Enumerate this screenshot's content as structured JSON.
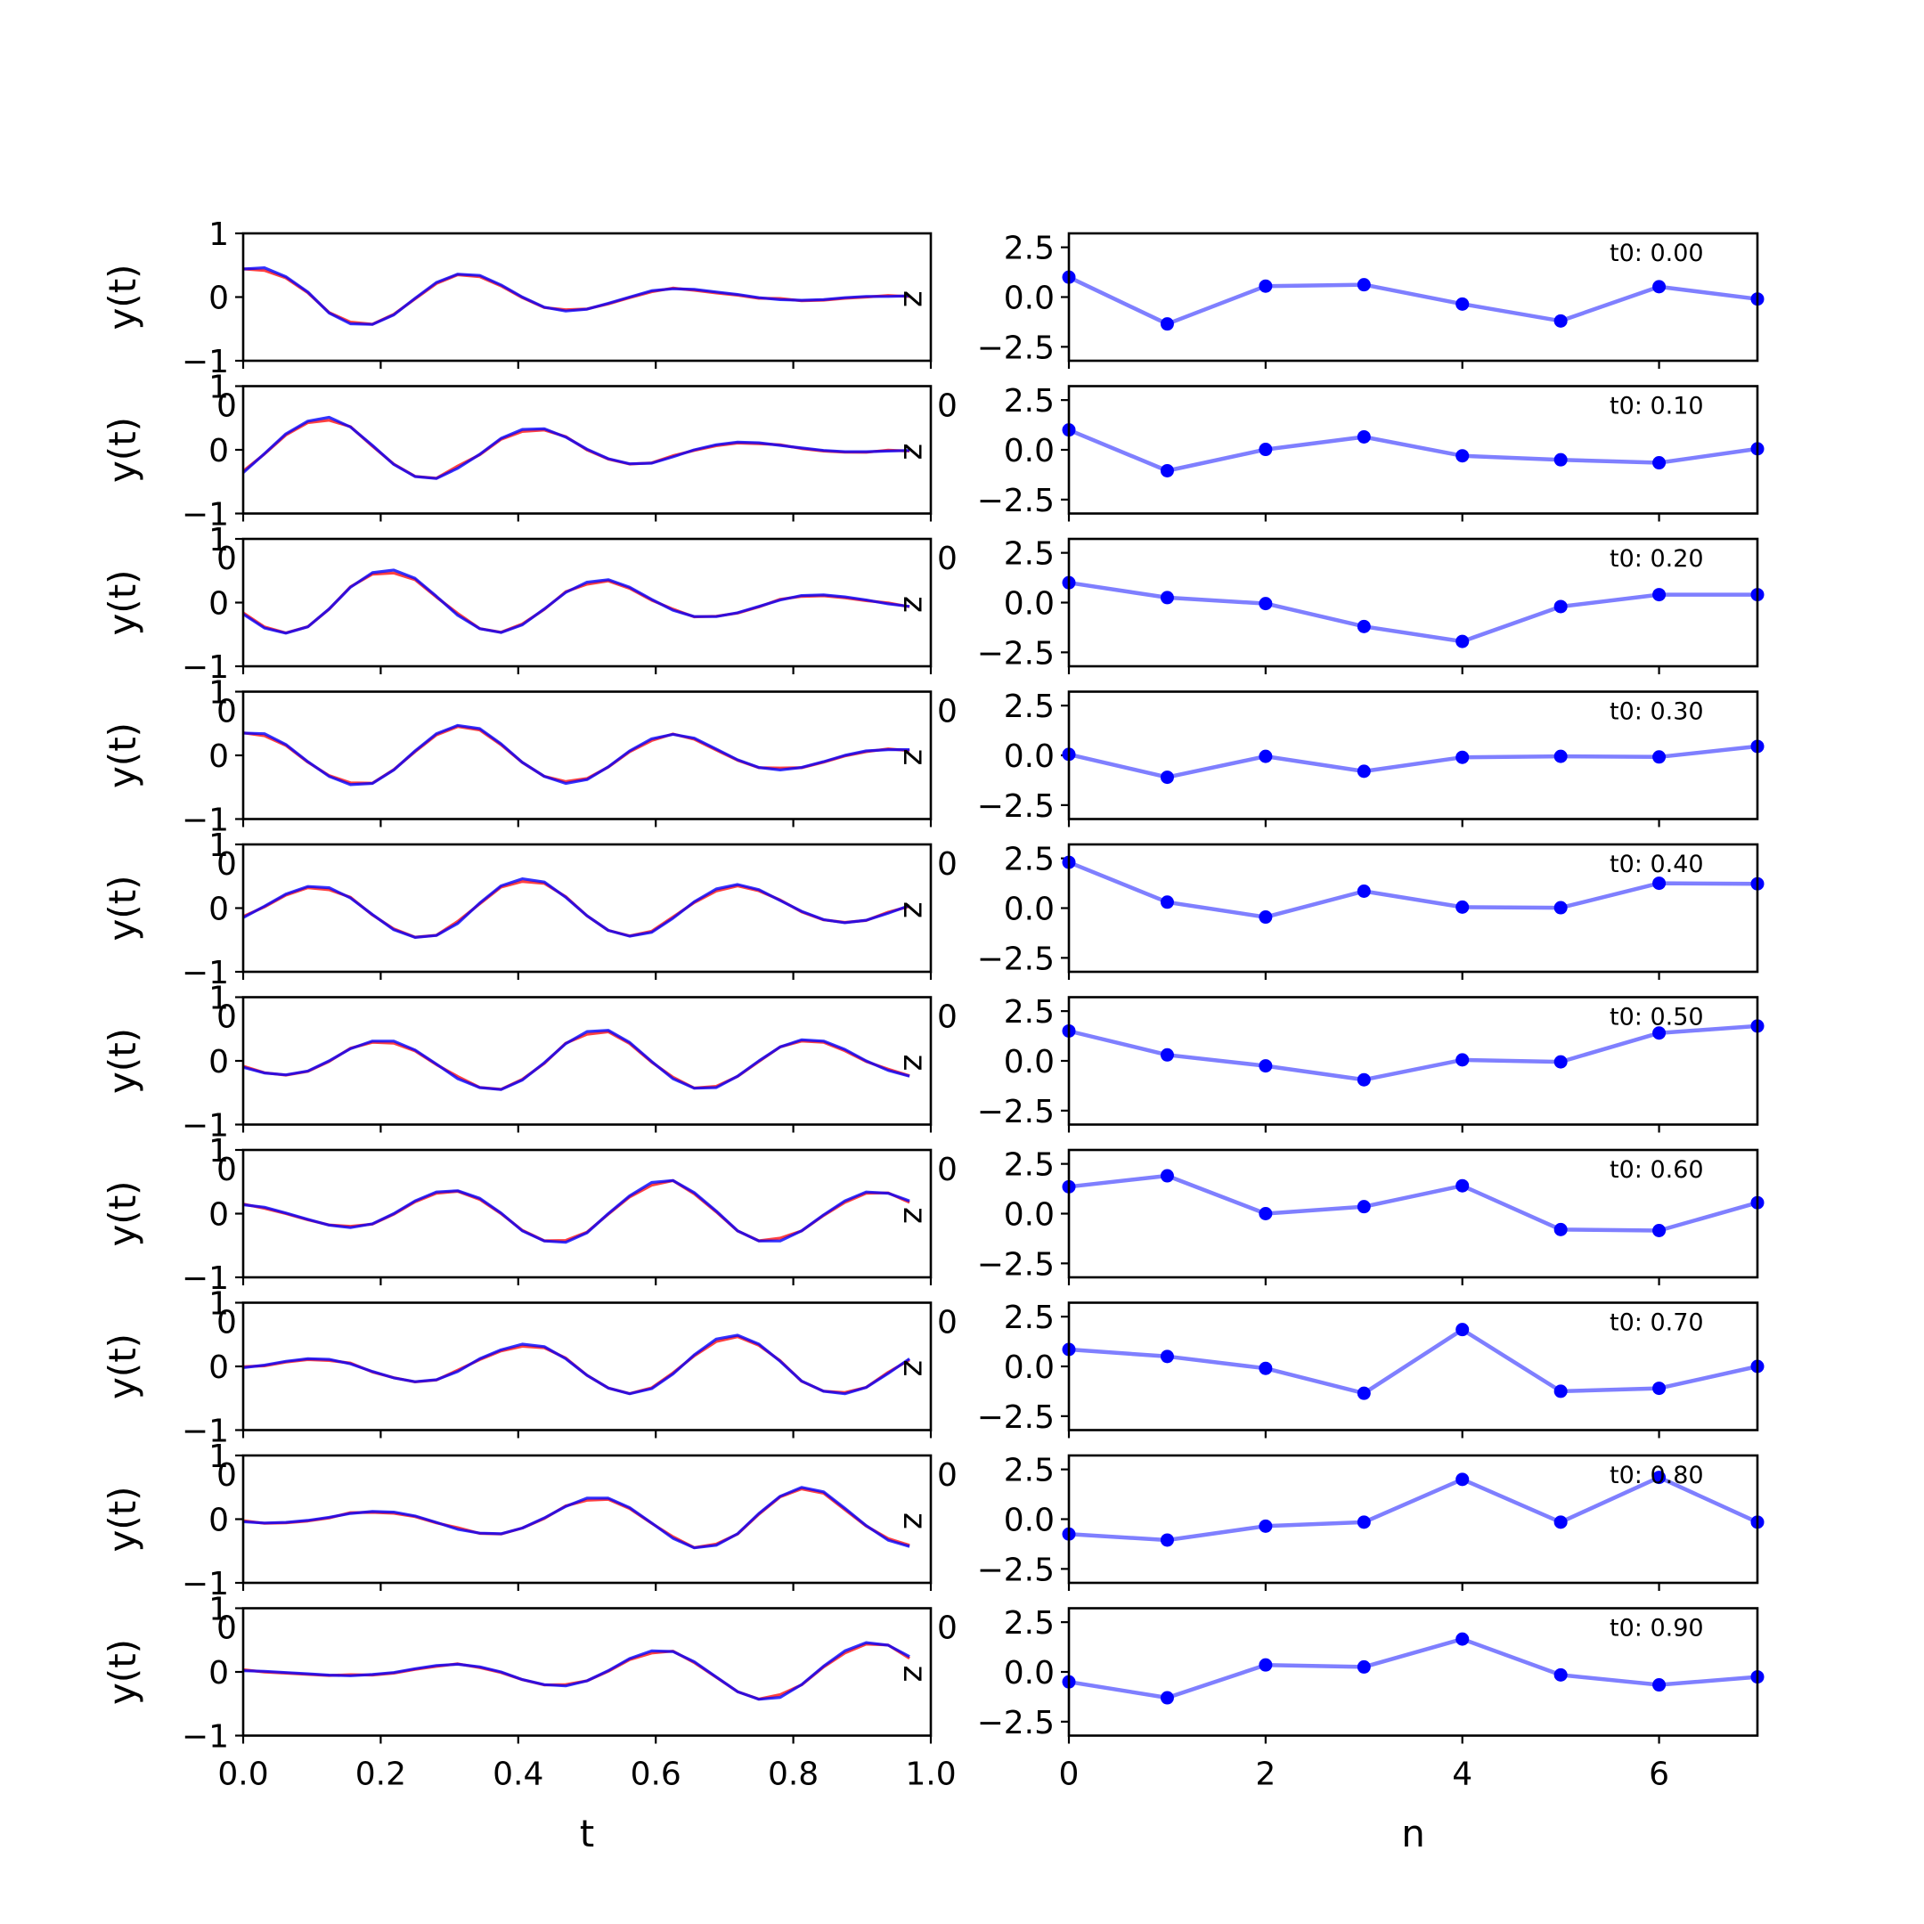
{
  "chart_data": {
    "type": "line",
    "left_panels": {
      "ylabel": "y(t)",
      "xlabel": "t",
      "ylim": [
        -1,
        1
      ],
      "yticks": [
        "1",
        "0",
        "−1"
      ],
      "xlim": [
        0,
        1
      ],
      "xticks": [
        "0.0",
        "0.2",
        "0.4",
        "0.6",
        "0.8",
        "1.0"
      ],
      "corner_label": "0",
      "right_label": "z",
      "series_colors": {
        "a": "#0000ff",
        "b": "#ff0000"
      },
      "t": [
        0.0,
        0.031,
        0.062,
        0.094,
        0.125,
        0.156,
        0.188,
        0.219,
        0.25,
        0.281,
        0.312,
        0.344,
        0.375,
        0.406,
        0.438,
        0.469,
        0.5,
        0.531,
        0.562,
        0.594,
        0.625,
        0.656,
        0.688,
        0.719,
        0.75,
        0.781,
        0.812,
        0.844,
        0.875,
        0.906,
        0.938,
        0.969
      ],
      "panels": [
        [
          0.44,
          0.46,
          0.32,
          0.08,
          -0.25,
          -0.42,
          -0.43,
          -0.28,
          -0.02,
          0.23,
          0.36,
          0.34,
          0.19,
          0.0,
          -0.16,
          -0.22,
          -0.19,
          -0.1,
          0.0,
          0.1,
          0.13,
          0.12,
          0.08,
          0.04,
          -0.01,
          -0.04,
          -0.05,
          -0.04,
          -0.01,
          0.01,
          0.01,
          0.02
        ],
        [
          -0.36,
          -0.06,
          0.25,
          0.45,
          0.51,
          0.36,
          0.07,
          -0.23,
          -0.42,
          -0.45,
          -0.29,
          -0.07,
          0.18,
          0.32,
          0.33,
          0.2,
          0.01,
          -0.14,
          -0.22,
          -0.21,
          -0.11,
          0.0,
          0.08,
          0.12,
          0.11,
          0.07,
          0.03,
          -0.01,
          -0.03,
          -0.03,
          -0.02,
          -0.01
        ],
        [
          -0.18,
          -0.4,
          -0.48,
          -0.38,
          -0.1,
          0.24,
          0.47,
          0.51,
          0.38,
          0.1,
          -0.2,
          -0.41,
          -0.47,
          -0.35,
          -0.1,
          0.16,
          0.32,
          0.36,
          0.24,
          0.05,
          -0.12,
          -0.22,
          -0.22,
          -0.16,
          -0.06,
          0.04,
          0.11,
          0.12,
          0.09,
          0.04,
          -0.02,
          -0.06
        ],
        [
          0.35,
          0.34,
          0.17,
          -0.1,
          -0.33,
          -0.46,
          -0.44,
          -0.23,
          0.07,
          0.34,
          0.47,
          0.42,
          0.18,
          -0.11,
          -0.33,
          -0.44,
          -0.38,
          -0.18,
          0.07,
          0.26,
          0.33,
          0.27,
          0.1,
          -0.07,
          -0.19,
          -0.23,
          -0.19,
          -0.1,
          0.0,
          0.07,
          0.09,
          0.09
        ],
        [
          -0.15,
          0.03,
          0.22,
          0.34,
          0.32,
          0.16,
          -0.1,
          -0.34,
          -0.46,
          -0.43,
          -0.24,
          0.08,
          0.35,
          0.46,
          0.41,
          0.17,
          -0.12,
          -0.35,
          -0.44,
          -0.38,
          -0.16,
          0.1,
          0.3,
          0.37,
          0.29,
          0.12,
          -0.05,
          -0.18,
          -0.23,
          -0.19,
          -0.08,
          0.04
        ],
        [
          -0.1,
          -0.19,
          -0.22,
          -0.16,
          0.0,
          0.19,
          0.31,
          0.31,
          0.17,
          -0.05,
          -0.28,
          -0.42,
          -0.45,
          -0.3,
          -0.03,
          0.27,
          0.46,
          0.48,
          0.29,
          -0.01,
          -0.28,
          -0.43,
          -0.42,
          -0.24,
          0.0,
          0.22,
          0.33,
          0.31,
          0.18,
          0.0,
          -0.15,
          -0.24
        ],
        [
          0.14,
          0.1,
          0.01,
          -0.09,
          -0.18,
          -0.22,
          -0.16,
          0.0,
          0.2,
          0.34,
          0.36,
          0.24,
          0.01,
          -0.27,
          -0.43,
          -0.45,
          -0.3,
          0.0,
          0.28,
          0.49,
          0.52,
          0.33,
          0.04,
          -0.27,
          -0.43,
          -0.43,
          -0.27,
          -0.02,
          0.2,
          0.34,
          0.32,
          0.2
        ],
        [
          -0.02,
          0.02,
          0.08,
          0.12,
          0.11,
          0.04,
          -0.08,
          -0.18,
          -0.24,
          -0.21,
          -0.08,
          0.12,
          0.26,
          0.35,
          0.31,
          0.12,
          -0.14,
          -0.34,
          -0.43,
          -0.35,
          -0.12,
          0.18,
          0.43,
          0.49,
          0.35,
          0.08,
          -0.23,
          -0.39,
          -0.43,
          -0.33,
          -0.11,
          0.12
        ],
        [
          -0.04,
          -0.06,
          -0.05,
          -0.02,
          0.03,
          0.09,
          0.12,
          0.11,
          0.05,
          -0.05,
          -0.16,
          -0.22,
          -0.23,
          -0.14,
          0.02,
          0.2,
          0.33,
          0.33,
          0.18,
          -0.06,
          -0.3,
          -0.45,
          -0.41,
          -0.23,
          0.09,
          0.36,
          0.5,
          0.43,
          0.17,
          -0.1,
          -0.33,
          -0.43
        ],
        [
          0.02,
          0.01,
          -0.01,
          -0.03,
          -0.05,
          -0.06,
          -0.04,
          -0.01,
          0.05,
          0.1,
          0.12,
          0.08,
          0.0,
          -0.12,
          -0.2,
          -0.22,
          -0.14,
          0.02,
          0.21,
          0.33,
          0.32,
          0.16,
          -0.08,
          -0.31,
          -0.43,
          -0.4,
          -0.2,
          0.09,
          0.33,
          0.46,
          0.42,
          0.24
        ]
      ]
    },
    "right_panels": {
      "xlabel": "n",
      "ylim": [
        -3.2,
        3.2
      ],
      "yticks": [
        "2.5",
        "0.0",
        "−2.5"
      ],
      "xlim": [
        0,
        7
      ],
      "xticks": [
        "0",
        "2",
        "4",
        "6"
      ],
      "corner_label": "0",
      "marker_color": "#0000ff",
      "line_color": "#7f7fff",
      "n": [
        0,
        1,
        2,
        3,
        4,
        5,
        6,
        7
      ],
      "annotations": [
        "t0: 0.00",
        "t0: 0.10",
        "t0: 0.20",
        "t0: 0.30",
        "t0: 0.40",
        "t0: 0.50",
        "t0: 0.60",
        "t0: 0.70",
        "t0: 0.80",
        "t0: 0.90"
      ],
      "panels": [
        [
          1.0,
          -1.35,
          0.55,
          0.62,
          -0.35,
          -1.2,
          0.52,
          -0.1
        ],
        [
          1.0,
          -1.05,
          0.02,
          0.65,
          -0.3,
          -0.5,
          -0.65,
          0.05
        ],
        [
          1.0,
          0.25,
          -0.05,
          -1.2,
          -1.95,
          -0.2,
          0.4,
          0.4
        ],
        [
          0.05,
          -1.1,
          -0.05,
          -0.8,
          -0.1,
          -0.05,
          -0.08,
          0.45
        ],
        [
          2.3,
          0.3,
          -0.45,
          0.85,
          0.05,
          0.02,
          1.25,
          1.22
        ],
        [
          1.5,
          0.3,
          -0.25,
          -0.95,
          0.05,
          -0.05,
          1.4,
          1.75
        ],
        [
          1.35,
          1.9,
          0.0,
          0.35,
          1.4,
          -0.8,
          -0.85,
          0.55
        ],
        [
          0.85,
          0.5,
          -0.1,
          -1.35,
          1.85,
          -1.25,
          -1.1,
          0.0
        ],
        [
          -0.75,
          -1.05,
          -0.35,
          -0.15,
          2.0,
          -0.15,
          2.1,
          -0.15
        ],
        [
          -0.5,
          -1.3,
          0.35,
          0.25,
          1.65,
          -0.15,
          -0.65,
          -0.25
        ]
      ]
    }
  }
}
